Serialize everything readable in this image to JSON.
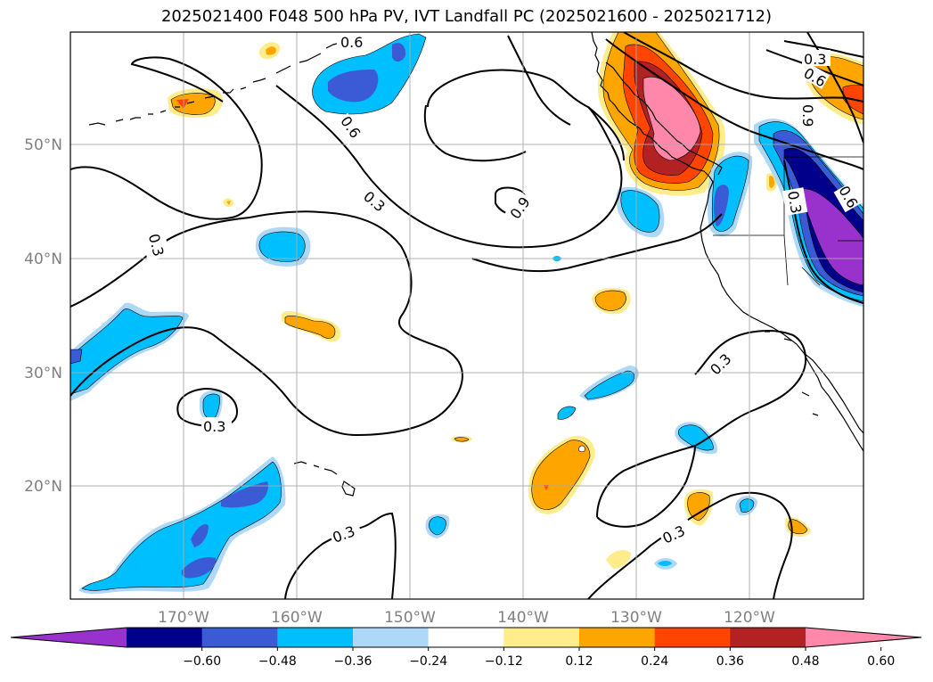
{
  "title": "2025021400 F048 500 hPa PV, IVT Landfall PC (2025021600 - 2025021712)",
  "lat_labels": [
    "50°N",
    "40°N",
    "30°N",
    "20°N"
  ],
  "lon_labels": [
    "170°W",
    "160°W",
    "150°W",
    "140°W",
    "130°W",
    "120°W"
  ],
  "colorbar": {
    "ticks": [
      "−0.60",
      "−0.48",
      "−0.36",
      "−0.24",
      "−0.12",
      "0.12",
      "0.24",
      "0.36",
      "0.48",
      "0.60"
    ],
    "colors": [
      "#9932cc",
      "#00008b",
      "#3b5bd6",
      "#00bfff",
      "#add8f7",
      "#ffffff",
      "#ffec8b",
      "#ffa500",
      "#ff4500",
      "#b22222",
      "#ff88aa"
    ]
  },
  "contour_labels": {
    "c1": "0.6",
    "c2": "0.6",
    "c3": "0.3",
    "c4": "0.3",
    "c5": "0.9",
    "c6": "0.3",
    "c7": "0.3",
    "c8": "0.3",
    "c9": "0.3",
    "c10": "0.3",
    "c11": "0.6",
    "c12": "0.9",
    "c13": "0.3",
    "c14": "0.6"
  }
}
